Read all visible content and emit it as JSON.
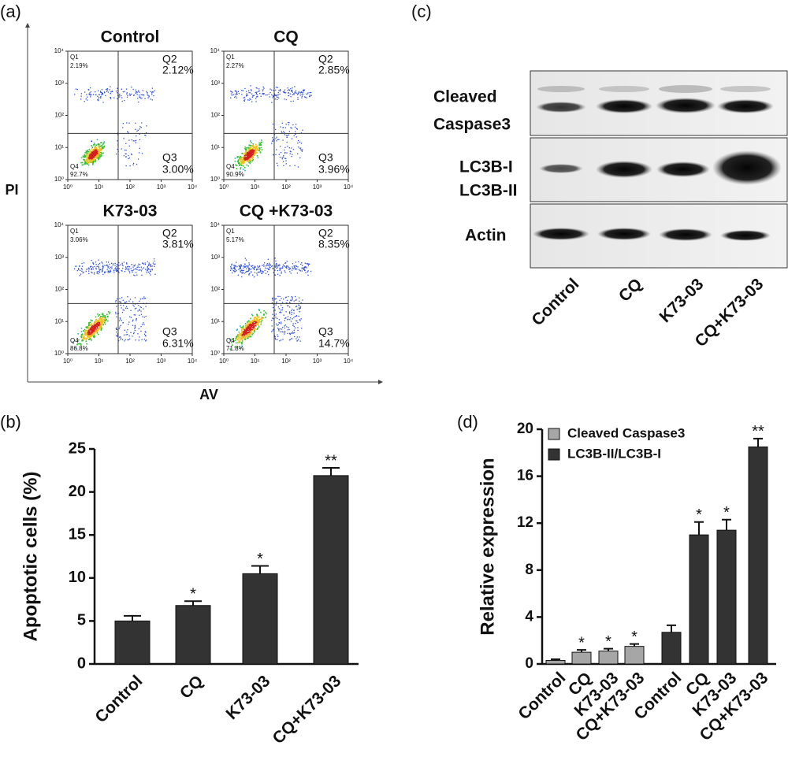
{
  "panel_labels": [
    "(a)",
    "(b)",
    "(c)",
    "(d)"
  ],
  "flow_cytometry": {
    "y_label": "PI",
    "x_label": "AV",
    "tick_labels": [
      "10⁰",
      "10¹",
      "10²",
      "10³",
      "10⁴"
    ],
    "plots": [
      {
        "title": "Control",
        "q1": "Q1",
        "q1_value": "2.19%",
        "q2": "Q2",
        "q2_value": "2.12%",
        "q3": "Q3",
        "q3_value": "3.00%",
        "q4": "Q4",
        "q4_value": "92.7%"
      },
      {
        "title": "CQ",
        "q1": "Q1",
        "q1_value": "2.27%",
        "q2": "Q2",
        "q2_value": "2.85%",
        "q3": "Q3",
        "q3_value": "3.96%",
        "q4": "Q4",
        "q4_value": "90.9%"
      },
      {
        "title": "K73-03",
        "q1": "Q1",
        "q1_value": "3.06%",
        "q2": "Q2",
        "q2_value": "3.81%",
        "q3": "Q3",
        "q3_value": "6.31%",
        "q4": "Q4",
        "q4_value": "86.8%"
      },
      {
        "title": "CQ +K73-03",
        "q1": "Q1",
        "q1_value": "5.17%",
        "q2": "Q2",
        "q2_value": "8.35%",
        "q3": "Q3",
        "q3_value": "14.7%",
        "q4": "Q4",
        "q4_value": "71.8%"
      }
    ]
  },
  "western_blot": {
    "row_labels": [
      "Cleaved",
      "Caspase3",
      "LC3B-I",
      "LC3B-II",
      "Actin"
    ],
    "lanes": [
      "Control",
      "CQ",
      "K73-03",
      "CQ+K73-03"
    ]
  },
  "chart_data": [
    {
      "type": "bar",
      "y_label": "Apoptotic cells (%)",
      "categories": [
        "Control",
        "CQ",
        "K73-03",
        "CQ+K73-03"
      ],
      "values": [
        5.0,
        6.8,
        10.5,
        21.9
      ],
      "errors": [
        0.6,
        0.5,
        0.9,
        0.9
      ],
      "significance": [
        null,
        "*",
        "*",
        "**"
      ],
      "color": "#333333",
      "ylim": [
        0,
        25
      ],
      "yticks": [
        0,
        5,
        10,
        15,
        20,
        25
      ]
    },
    {
      "type": "bar",
      "y_label": "Relative expression",
      "categories": [
        "Control",
        "CQ",
        "K73-03",
        "CQ+K73-03",
        "Control",
        "CQ",
        "K73-03",
        "CQ+K73-03"
      ],
      "series": [
        {
          "name": "Cleaved Caspase3",
          "color": "#a6a6a6",
          "values": [
            0.3,
            1.0,
            1.1,
            1.5,
            null,
            null,
            null,
            null
          ],
          "errors": [
            0.1,
            0.2,
            0.2,
            0.2,
            null,
            null,
            null,
            null
          ],
          "significance": [
            null,
            "*",
            "*",
            "*",
            null,
            null,
            null,
            null
          ]
        },
        {
          "name": "LC3B-II/LC3B-I",
          "color": "#333333",
          "values": [
            null,
            null,
            null,
            null,
            2.7,
            11.0,
            11.4,
            18.5
          ],
          "errors": [
            null,
            null,
            null,
            null,
            0.6,
            1.1,
            0.9,
            0.7
          ],
          "significance": [
            null,
            null,
            null,
            null,
            null,
            "*",
            "*",
            "**"
          ]
        }
      ],
      "legend": "upper left",
      "ylim": [
        0,
        20
      ],
      "yticks": [
        0,
        4,
        8,
        12,
        16,
        20
      ]
    }
  ]
}
